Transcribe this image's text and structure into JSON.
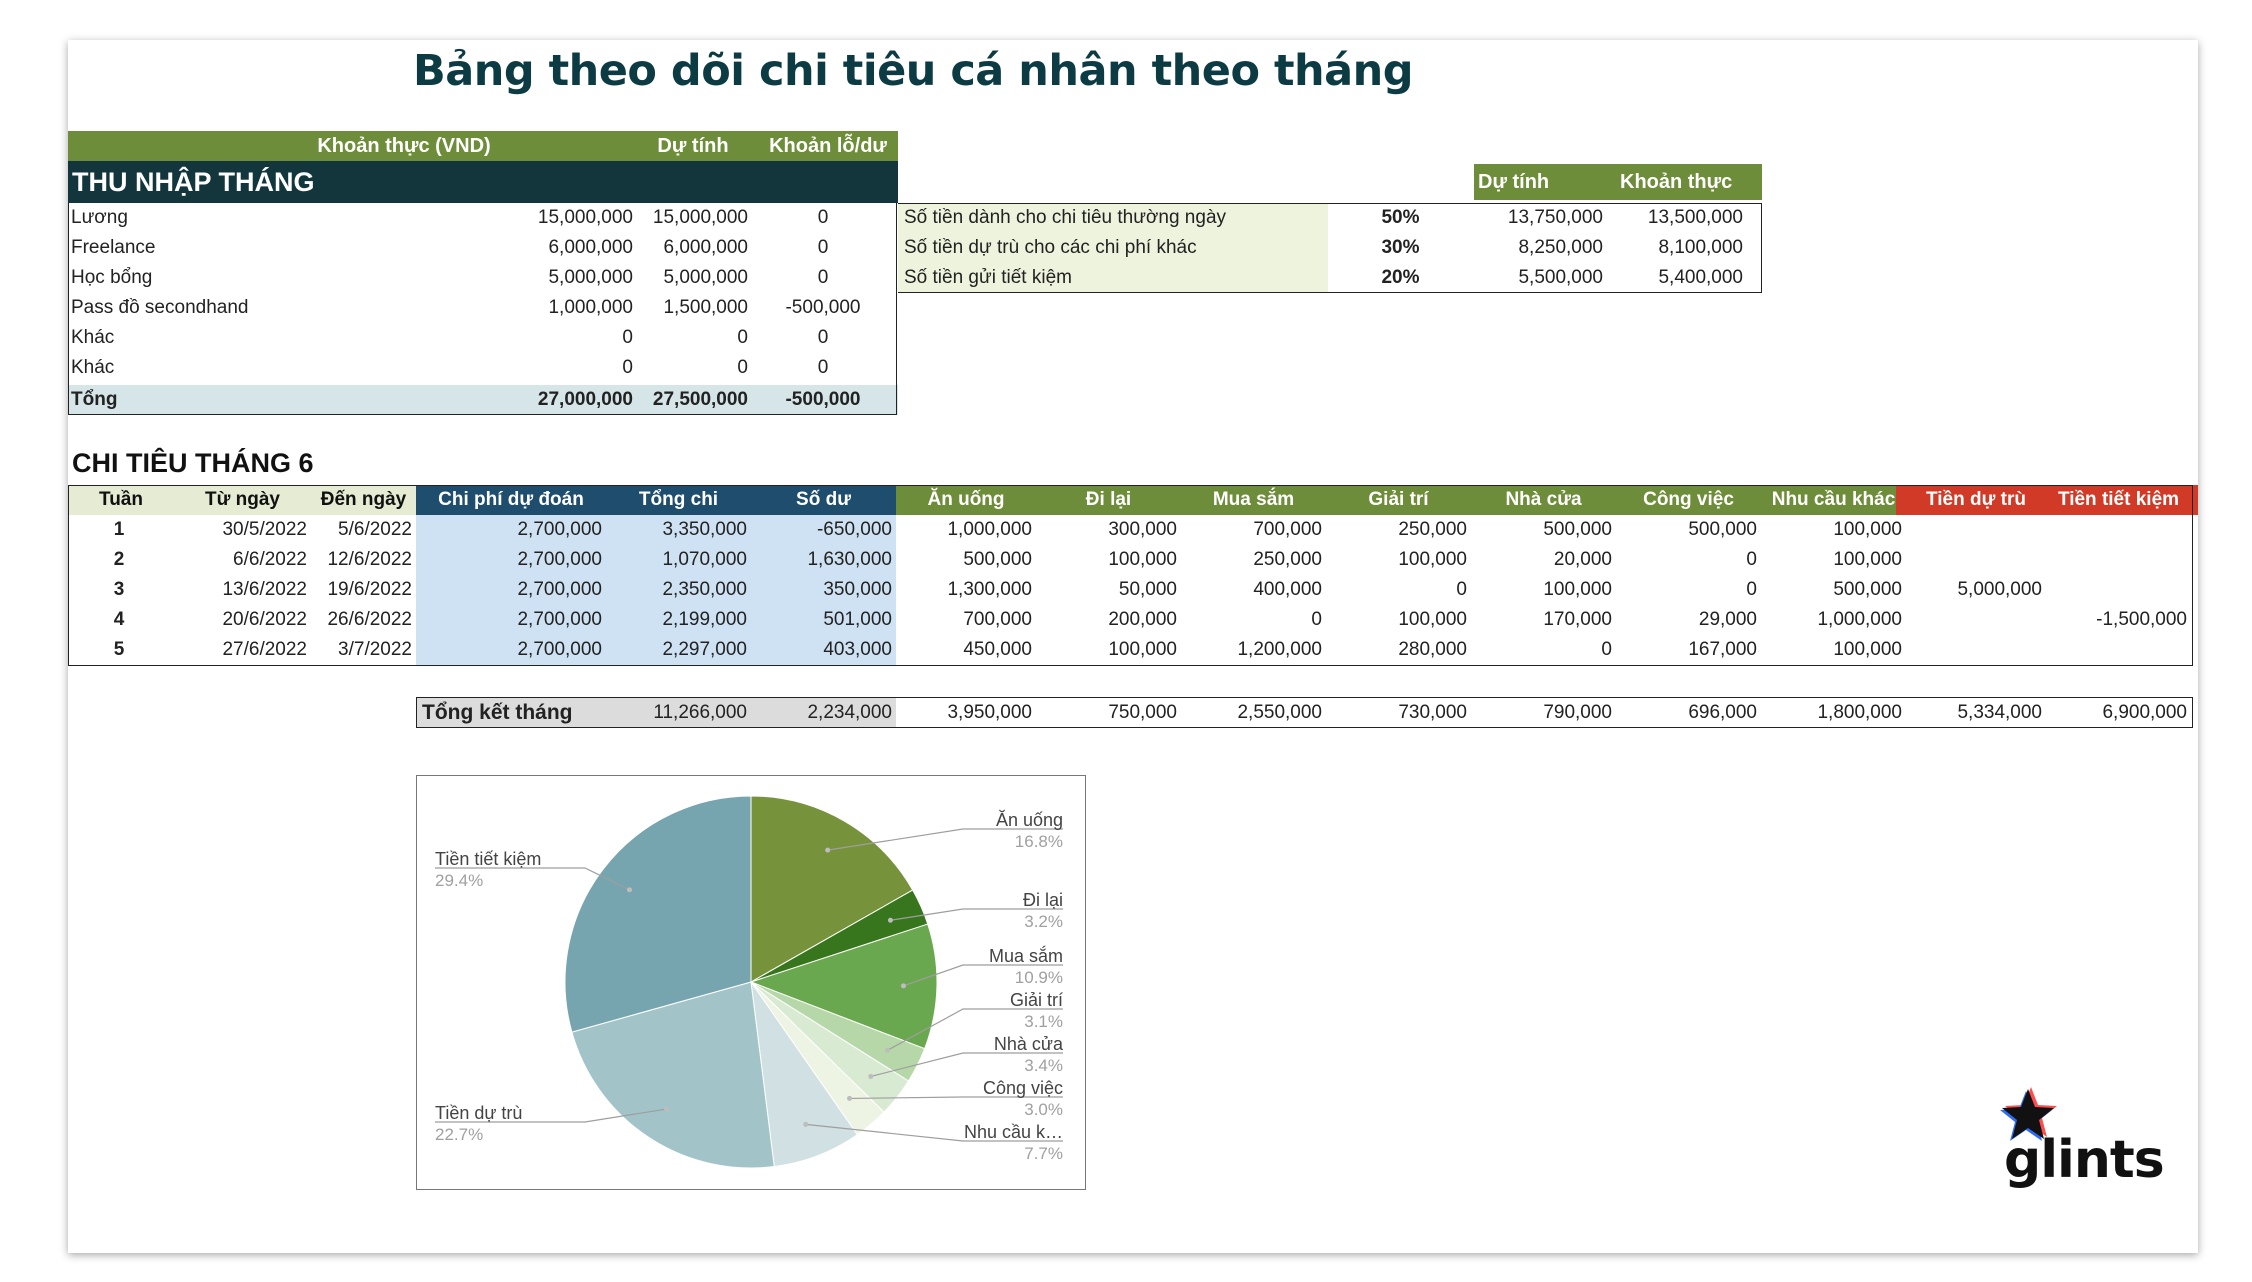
{
  "title": "Bảng theo dõi chi tiêu cá nhân theo tháng",
  "income": {
    "section_title": "THU NHẬP THÁNG",
    "columns": [
      "Khoản thực (VND)",
      "Dự tính",
      "Khoản lỗ/dư"
    ],
    "rows": [
      {
        "label": "Lương",
        "actual": "15,000,000",
        "plan": "15,000,000",
        "diff": "0"
      },
      {
        "label": "Freelance",
        "actual": "6,000,000",
        "plan": "6,000,000",
        "diff": "0"
      },
      {
        "label": "Học bổng",
        "actual": "5,000,000",
        "plan": "5,000,000",
        "diff": "0"
      },
      {
        "label": "Pass đồ secondhand",
        "actual": "1,000,000",
        "plan": "1,500,000",
        "diff": "-500,000"
      },
      {
        "label": "Khác",
        "actual": "0",
        "plan": "0",
        "diff": "0"
      },
      {
        "label": "Khác",
        "actual": "0",
        "plan": "0",
        "diff": "0"
      }
    ],
    "total": {
      "label": "Tổng",
      "actual": "27,000,000",
      "plan": "27,500,000",
      "diff": "-500,000"
    }
  },
  "allocation": {
    "columns": [
      "Dự tính",
      "Khoản thực"
    ],
    "rows": [
      {
        "label": "Số tiền dành cho chi tiêu thường ngày",
        "pct": "50%",
        "plan": "13,750,000",
        "actual": "13,500,000"
      },
      {
        "label": "Số tiền dự trù cho các chi phí khác",
        "pct": "30%",
        "plan": "8,250,000",
        "actual": "8,100,000"
      },
      {
        "label": "Số tiền gửi tiết kiệm",
        "pct": "20%",
        "plan": "5,500,000",
        "actual": "5,400,000"
      }
    ]
  },
  "expenses": {
    "section_title": "CHI TIÊU THÁNG 6",
    "columns": [
      "Tuần",
      "Từ ngày",
      "Đến ngày",
      "Chi phí dự đoán",
      "Tổng chi",
      "Số dư",
      "Ăn uống",
      "Đi lại",
      "Mua sắm",
      "Giải trí",
      "Nhà cửa",
      "Công việc",
      "Nhu cầu khác",
      "Tiền dự trù",
      "Tiền tiết kiệm"
    ],
    "rows": [
      [
        "1",
        "30/5/2022",
        "5/6/2022",
        "2,700,000",
        "3,350,000",
        "-650,000",
        "1,000,000",
        "300,000",
        "700,000",
        "250,000",
        "500,000",
        "500,000",
        "100,000",
        "",
        ""
      ],
      [
        "2",
        "6/6/2022",
        "12/6/2022",
        "2,700,000",
        "1,070,000",
        "1,630,000",
        "500,000",
        "100,000",
        "250,000",
        "100,000",
        "20,000",
        "0",
        "100,000",
        "",
        ""
      ],
      [
        "3",
        "13/6/2022",
        "19/6/2022",
        "2,700,000",
        "2,350,000",
        "350,000",
        "1,300,000",
        "50,000",
        "400,000",
        "0",
        "100,000",
        "0",
        "500,000",
        "5,000,000",
        ""
      ],
      [
        "4",
        "20/6/2022",
        "26/6/2022",
        "2,700,000",
        "2,199,000",
        "501,000",
        "700,000",
        "200,000",
        "0",
        "100,000",
        "170,000",
        "29,000",
        "1,000,000",
        "",
        "-1,500,000"
      ],
      [
        "5",
        "27/6/2022",
        "3/7/2022",
        "2,700,000",
        "2,297,000",
        "403,000",
        "450,000",
        "100,000",
        "1,200,000",
        "280,000",
        "0",
        "167,000",
        "100,000",
        "",
        ""
      ]
    ],
    "summary": {
      "label": "Tổng kết tháng",
      "values": [
        "11,266,000",
        "2,234,000",
        "3,950,000",
        "750,000",
        "2,550,000",
        "730,000",
        "790,000",
        "696,000",
        "1,800,000",
        "5,334,000",
        "6,900,000"
      ]
    }
  },
  "chart_data": {
    "type": "pie",
    "title": "",
    "slices": [
      {
        "label": "Ăn uống",
        "pct_label": "16.8%",
        "value": 16.8,
        "color": "#76933c"
      },
      {
        "label": "Đi lại",
        "pct_label": "3.2%",
        "value": 3.2,
        "color": "#38761d"
      },
      {
        "label": "Mua sắm",
        "pct_label": "10.9%",
        "value": 10.9,
        "color": "#6aa84f"
      },
      {
        "label": "Giải trí",
        "pct_label": "3.1%",
        "value": 3.1,
        "color": "#b6d7a8"
      },
      {
        "label": "Nhà cửa",
        "pct_label": "3.4%",
        "value": 3.4,
        "color": "#d9ead3"
      },
      {
        "label": "Công việc",
        "pct_label": "3.0%",
        "value": 3.0,
        "color": "#eef4e3"
      },
      {
        "label": "Nhu cầu k…",
        "pct_label": "7.7%",
        "value": 7.7,
        "color": "#d0e0e3"
      },
      {
        "label": "Tiền dự trù",
        "pct_label": "22.7%",
        "value": 22.7,
        "color": "#a2c4c9"
      },
      {
        "label": "Tiền tiết kiệm",
        "pct_label": "29.4%",
        "value": 29.4,
        "color": "#76a5af"
      }
    ]
  },
  "logo": {
    "text": "glints"
  }
}
